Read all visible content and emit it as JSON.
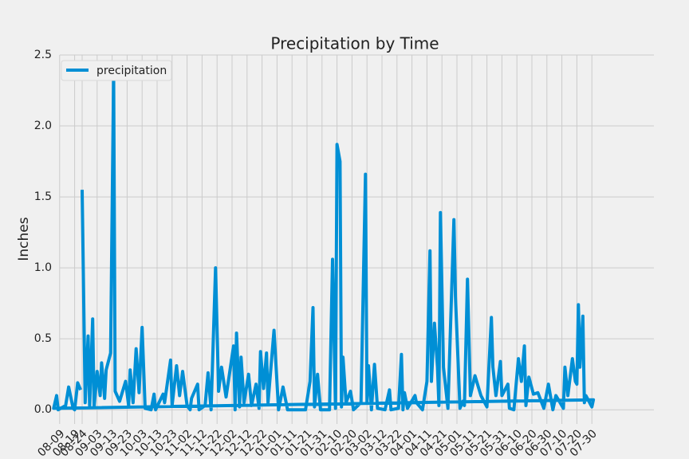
{
  "chart_data": {
    "type": "line",
    "title": "Precipitation by Time",
    "y_label": "Inches",
    "legend": "upper left",
    "grid": true,
    "x": [
      "08-24",
      "08-26",
      "08-28",
      "08-29",
      "08-31",
      "09-01",
      "09-03",
      "09-05",
      "09-06",
      "09-08",
      "09-09",
      "09-12",
      "09-14",
      "09-15",
      "09-18",
      "09-22",
      "09-24",
      "09-25",
      "09-27",
      "09-29",
      "10-01",
      "10-03",
      "10-05",
      "10-09",
      "10-11",
      "10-12",
      "10-17",
      "10-18",
      "10-22",
      "10-23",
      "10-26",
      "10-28",
      "10-30",
      "11-02",
      "11-04",
      "11-05",
      "11-09",
      "11-10",
      "11-14",
      "11-16",
      "11-18",
      "11-21",
      "11-23",
      "11-25",
      "11-28",
      "12-03",
      "12-04",
      "12-05",
      "12-07",
      "12-08",
      "12-10",
      "12-13",
      "12-15",
      "12-18",
      "12-20",
      "12-21",
      "12-23",
      "12-25",
      "12-26",
      "12-30",
      "01-02",
      "01-05",
      "01-08",
      "01-20",
      "01-23",
      "01-25",
      "01-26",
      "01-28",
      "01-30",
      "02-05",
      "02-07",
      "02-09",
      "02-10",
      "02-12",
      "02-13",
      "02-14",
      "02-16",
      "02-19",
      "02-21",
      "02-26",
      "03-01",
      "03-02",
      "03-03",
      "03-05",
      "03-07",
      "03-09",
      "03-14",
      "03-17",
      "03-18",
      "03-23",
      "03-25",
      "03-26",
      "03-27",
      "03-29",
      "04-03",
      "04-04",
      "04-08",
      "04-11",
      "04-13",
      "04-14",
      "04-16",
      "04-18",
      "04-19",
      "04-20",
      "04-22",
      "04-25",
      "04-29",
      "04-30",
      "05-03",
      "05-05",
      "05-06",
      "05-08",
      "05-10",
      "05-13",
      "05-17",
      "05-21",
      "05-24",
      "05-25",
      "05-27",
      "05-30",
      "05-31",
      "06-04",
      "06-05",
      "06-08",
      "06-11",
      "06-13",
      "06-15",
      "06-16",
      "06-18",
      "06-21",
      "06-24",
      "06-28",
      "07-01",
      "07-04",
      "07-06",
      "07-11",
      "07-12",
      "07-14",
      "07-17",
      "07-19",
      "07-20",
      "07-21",
      "07-22",
      "07-24",
      "07-25",
      "07-26",
      "07-30",
      "07-31",
      "08-05",
      "08-07",
      "08-08",
      "08-13",
      "08-15",
      "08-18",
      "08-19",
      "08-21",
      "08-23"
    ],
    "series": [
      {
        "name": "precipitation",
        "color": "#008fd5",
        "values": [
          1.55,
          0.05,
          0.52,
          0.02,
          0.64,
          0.02,
          0.27,
          0.1,
          0.33,
          0.08,
          0.28,
          0.4,
          2.38,
          0.13,
          0.06,
          0.2,
          0.03,
          0.28,
          0.05,
          0.43,
          0.12,
          0.58,
          0.01,
          0.0,
          0.11,
          0.0,
          0.11,
          0.05,
          0.35,
          0.03,
          0.31,
          0.1,
          0.27,
          0.03,
          0.0,
          0.08,
          0.18,
          0.0,
          0.03,
          0.26,
          0.0,
          1.0,
          0.13,
          0.3,
          0.09,
          0.45,
          0.0,
          0.54,
          0.02,
          0.37,
          0.05,
          0.25,
          0.03,
          0.18,
          0.01,
          0.41,
          0.15,
          0.4,
          0.05,
          0.56,
          0.0,
          0.16,
          0.0,
          0.0,
          0.2,
          0.72,
          0.02,
          0.25,
          0.0,
          0.0,
          1.06,
          0.01,
          1.87,
          1.75,
          0.02,
          0.37,
          0.05,
          0.13,
          0.0,
          0.05,
          1.66,
          0.05,
          0.31,
          0.0,
          0.32,
          0.01,
          0.0,
          0.14,
          0.0,
          0.01,
          0.39,
          0.0,
          0.12,
          0.01,
          0.1,
          0.05,
          0.0,
          0.2,
          1.12,
          0.2,
          0.61,
          0.3,
          0.03,
          1.39,
          0.3,
          0.01,
          1.34,
          0.8,
          0.01,
          0.06,
          0.03,
          0.92,
          0.1,
          0.24,
          0.1,
          0.02,
          0.65,
          0.3,
          0.1,
          0.34,
          0.1,
          0.18,
          0.01,
          0.0,
          0.36,
          0.2,
          0.45,
          0.03,
          0.23,
          0.11,
          0.12,
          0.01,
          0.18,
          0.0,
          0.1,
          0.01,
          0.3,
          0.1,
          0.36,
          0.2,
          0.18,
          0.74,
          0.3,
          0.66,
          0.05,
          0.1,
          0.02,
          0.07,
          0.01,
          0.1,
          0.0,
          0.03,
          0.16,
          0.01,
          0.0,
          0.19,
          0.14
        ]
      }
    ],
    "xticks": [
      "08-24",
      "09-03",
      "09-13",
      "09-23",
      "10-03",
      "10-13",
      "10-23",
      "11-02",
      "11-12",
      "11-22",
      "12-02",
      "12-12",
      "12-22",
      "01-01",
      "01-11",
      "01-21",
      "01-31",
      "02-10",
      "02-20",
      "03-02",
      "03-12",
      "03-22",
      "04-01",
      "04-11",
      "04-21",
      "05-01",
      "05-11",
      "05-21",
      "05-31",
      "06-10",
      "06-20",
      "06-30",
      "07-10",
      "07-20",
      "07-30",
      "08-09",
      "08-19"
    ],
    "ylim": [
      -0.1,
      2.5
    ],
    "yticks": [
      {
        "value": 0,
        "label": "0.0"
      },
      0.5,
      {
        "value": 1,
        "label": "1.0"
      },
      1.5,
      {
        "value": 2,
        "label": "2.0"
      },
      2.5
    ]
  }
}
